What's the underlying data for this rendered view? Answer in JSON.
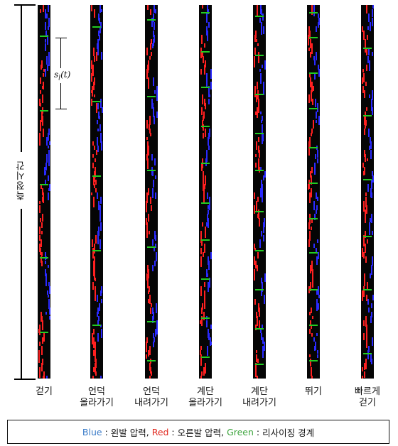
{
  "axis_label": "측정시간",
  "segment_label": "s",
  "segment_label_sub": "l",
  "segment_label_arg": "(t)",
  "strips": [
    {
      "lines": [
        "걷기"
      ],
      "boundaries": [
        43,
        148,
        252,
        355,
        460
      ]
    },
    {
      "lines": [
        "언덕",
        "올라가기"
      ],
      "boundaries": [
        30,
        135,
        240,
        345,
        450
      ]
    },
    {
      "lines": [
        "언덕",
        "내려가기"
      ],
      "boundaries": [
        20,
        128,
        232,
        340,
        445,
        500
      ]
    },
    {
      "lines": [
        "계단",
        "올라가기"
      ],
      "boundaries": [
        10,
        65,
        115,
        170,
        222,
        278,
        330,
        385,
        440,
        495
      ]
    },
    {
      "lines": [
        "계단",
        "내려가기"
      ],
      "boundaries": [
        15,
        70,
        125,
        180,
        232,
        290,
        345,
        400,
        455,
        505
      ]
    },
    {
      "lines": [
        "뛰기"
      ],
      "boundaries": [
        10,
        45,
        95,
        145,
        200,
        250,
        300,
        348,
        400,
        450,
        500
      ]
    },
    {
      "lines": [
        "빠르게",
        "걷기"
      ],
      "boundaries": [
        60,
        155,
        245,
        325,
        400,
        490
      ]
    }
  ],
  "legend": {
    "blue": "Blue",
    "blue_desc": "왼발 압력",
    "red": "Red",
    "red_desc": "오른발 압력",
    "green": "Green",
    "green_desc": "리사이징 경계"
  },
  "colors": {
    "left_foot": "#2a2aff",
    "right_foot": "#ff2020",
    "boundary": "#22cc22",
    "background": "#050505"
  }
}
